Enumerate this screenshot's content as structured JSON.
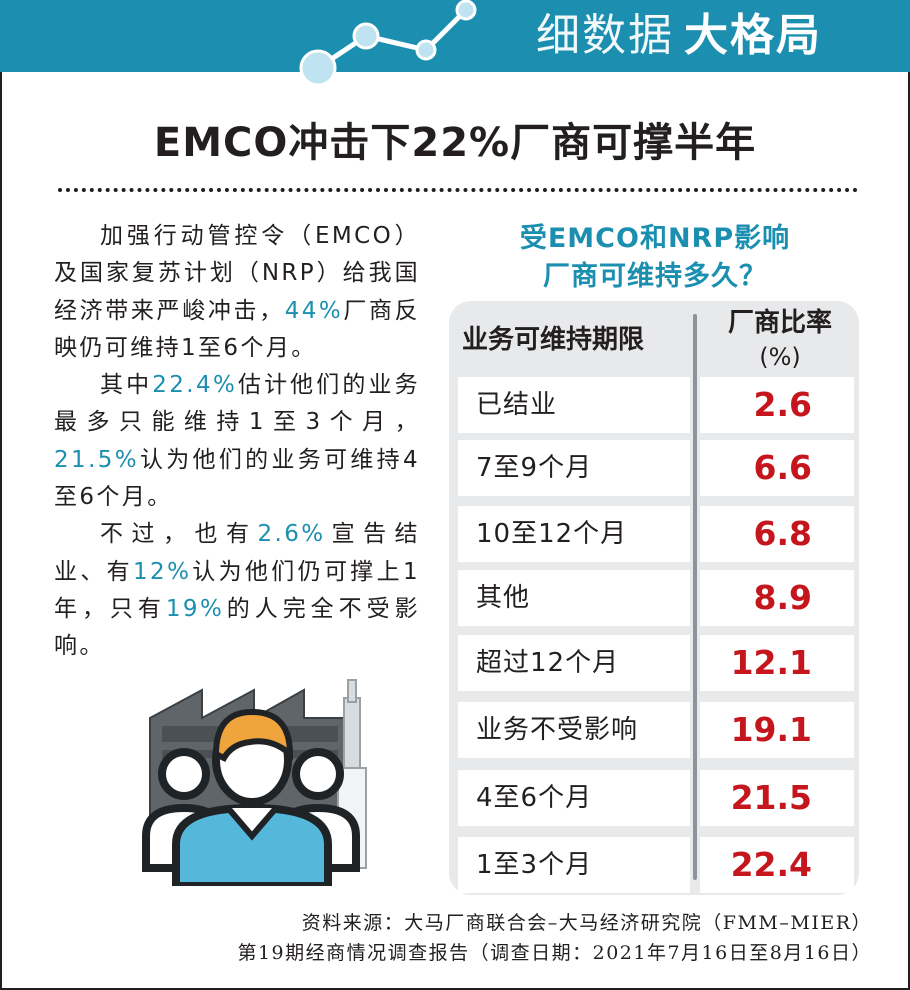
{
  "header": {
    "title_light": "细数据",
    "title_bold": "大格局",
    "logo": "line-chart-icon"
  },
  "headline": "EMCO冲击下22%厂商可撑半年",
  "article": {
    "p1": [
      "加强行动管控令（EMCO）及国家复苏计划（NRP）给我国经济带来严峻冲击，",
      "44%",
      "厂商反映仍可维持1至6个月。"
    ],
    "p2": [
      "其中",
      "22.4%",
      "估计他们的业务最多只能维持1至3个月，",
      "21.5%",
      "认为他们的业务可维持4至6个月。"
    ],
    "p3": [
      "不过，也有",
      "2.6%",
      "宣告结业、有",
      "12%",
      "认为他们仍可撑上1年，只有",
      "19%",
      "的人完全不受影响。"
    ]
  },
  "chart_data": {
    "type": "table",
    "title_line1": "受EMCO和NRP影响",
    "title_line2": "厂商可维持多久？",
    "col_period": "业务可维持期限",
    "col_ratio": "厂商比率",
    "col_unit": "(%)",
    "rows": [
      {
        "label": "已结业",
        "value": "2.6"
      },
      {
        "label": "7至9个月",
        "value": "6.6"
      },
      {
        "label": "10至12个月",
        "value": "6.8"
      },
      {
        "label": "其他",
        "value": "8.9"
      },
      {
        "label": "超过12个月",
        "value": "12.1"
      },
      {
        "label": "业务不受影响",
        "value": "19.1"
      },
      {
        "label": "4至6个月",
        "value": "21.5"
      },
      {
        "label": "1至3个月",
        "value": "22.4"
      }
    ]
  },
  "source": {
    "line1": "资料来源：大马厂商联合会–大马经济研究院（FMM–MIER）",
    "line2": "第19期经商情况调查报告（调查日期：2021年7月16日至8月16日）"
  },
  "colors": {
    "accent": "#1c8fb0",
    "value_red": "#c4161c",
    "table_bg": "#e8e9ea"
  },
  "illustration": "factory-workers-illustration"
}
